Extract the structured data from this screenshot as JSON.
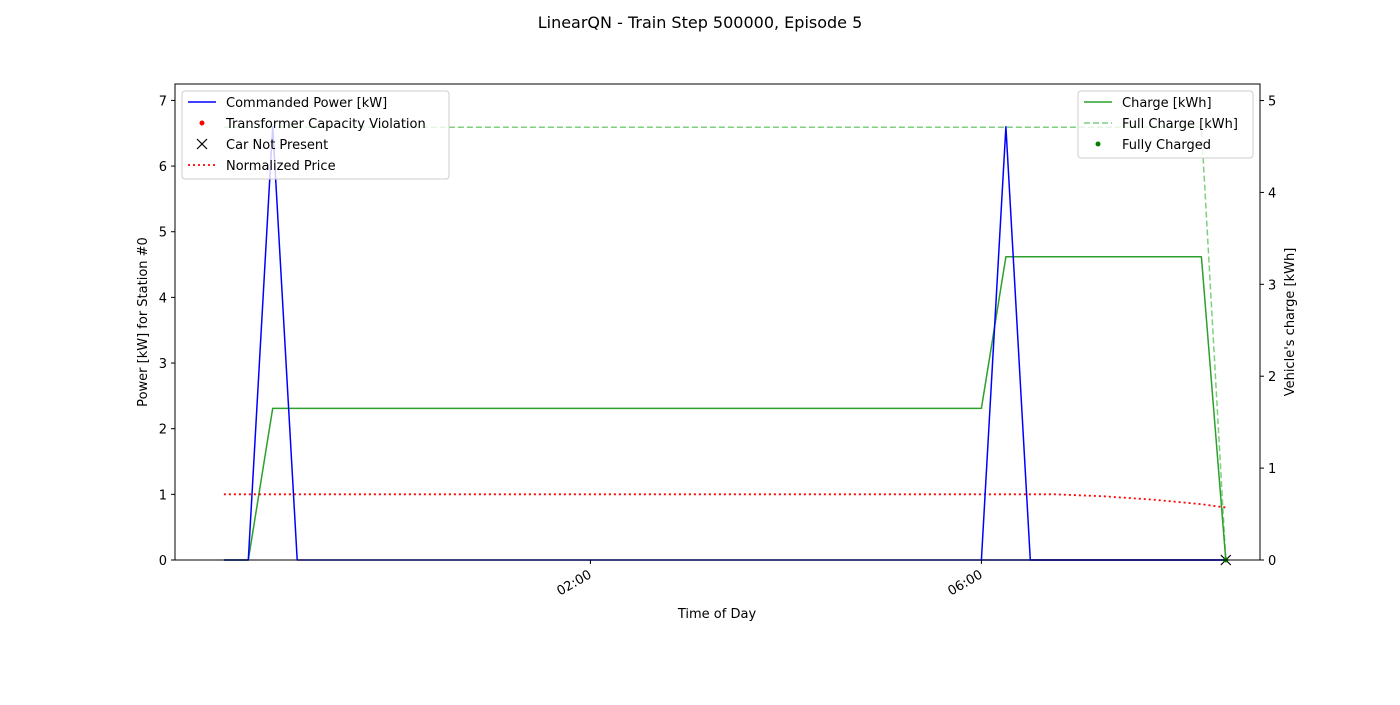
{
  "chart_data": {
    "type": "line",
    "title": "LinearQN - Train Step 500000, Episode 5",
    "xlabel": "Time of Day",
    "ylabel_left": "Power [kW] for Station #0",
    "ylabel_right": "Vehicle's charge [kWh]",
    "x_unit": "hours",
    "xlim": [
      -0.5,
      10.6
    ],
    "ylim_left": [
      0,
      7.25
    ],
    "ylim_right": [
      0,
      5.18
    ],
    "x_ticks": [
      {
        "value": 3.75,
        "label": "02:00"
      },
      {
        "value": 7.75,
        "label": "06:00"
      }
    ],
    "y_ticks_left": [
      0,
      1,
      2,
      3,
      4,
      5,
      6,
      7
    ],
    "y_ticks_right": [
      0,
      1,
      2,
      3,
      4,
      5
    ],
    "grid": false,
    "legend_left": {
      "placement": "upper-left",
      "entries": [
        {
          "label": "Commanded Power [kW]",
          "color": "#0000ff",
          "style": "solid"
        },
        {
          "label": "Transformer Capacity Violation",
          "color": "#ff0000",
          "style": "dot-marker"
        },
        {
          "label": "Car Not Present",
          "color": "#000000",
          "style": "x-marker"
        },
        {
          "label": "Normalized Price",
          "color": "#ff0000",
          "style": "dotted"
        }
      ]
    },
    "legend_right": {
      "placement": "upper-right",
      "entries": [
        {
          "label": "Charge [kWh]",
          "color": "#2ca02c",
          "style": "solid"
        },
        {
          "label": "Full Charge [kWh]",
          "color": "#7fcf7f",
          "style": "dashed"
        },
        {
          "label": "Fully Charged",
          "color": "#008000",
          "style": "dot-marker"
        }
      ]
    },
    "series": [
      {
        "name": "Commanded Power [kW]",
        "axis": "left",
        "color": "#0000ff",
        "style": "solid",
        "x": [
          0,
          0.25,
          0.5,
          0.75,
          10.25
        ],
        "y": [
          0,
          0,
          6.6,
          0,
          0
        ],
        "x2": [
          7.75,
          8.0,
          8.25,
          10.25
        ],
        "y2": [
          0,
          6.6,
          0,
          0
        ]
      },
      {
        "name": "Normalized Price",
        "axis": "left",
        "color": "#ff0000",
        "style": "dotted",
        "x": [
          0,
          1,
          2,
          3,
          4,
          5,
          6,
          7,
          8,
          8.5,
          9,
          9.5,
          10,
          10.25
        ],
        "y": [
          1.0,
          1.0,
          1.0,
          1.0,
          1.0,
          1.0,
          1.0,
          1.0,
          1.0,
          1.0,
          0.97,
          0.92,
          0.85,
          0.8
        ]
      },
      {
        "name": "Charge [kWh]",
        "axis": "right",
        "color": "#2ca02c",
        "style": "solid",
        "x": [
          0,
          0.25,
          0.5,
          7.75,
          8.0,
          10.0,
          10.25
        ],
        "y": [
          0,
          0,
          1.65,
          1.65,
          3.3,
          3.3,
          0
        ]
      },
      {
        "name": "Full Charge [kWh]",
        "axis": "right",
        "color": "#7fcf7f",
        "style": "dashed",
        "x": [
          0,
          10.0,
          10.25
        ],
        "y": [
          4.71,
          4.71,
          0
        ]
      }
    ],
    "markers": [
      {
        "name": "Car Not Present",
        "axis": "left",
        "x": 10.25,
        "y": 0,
        "color": "#000000"
      },
      {
        "name": "Fully Charged",
        "axis": "right",
        "x": 10.25,
        "y": 0,
        "color": "#008000"
      }
    ]
  }
}
